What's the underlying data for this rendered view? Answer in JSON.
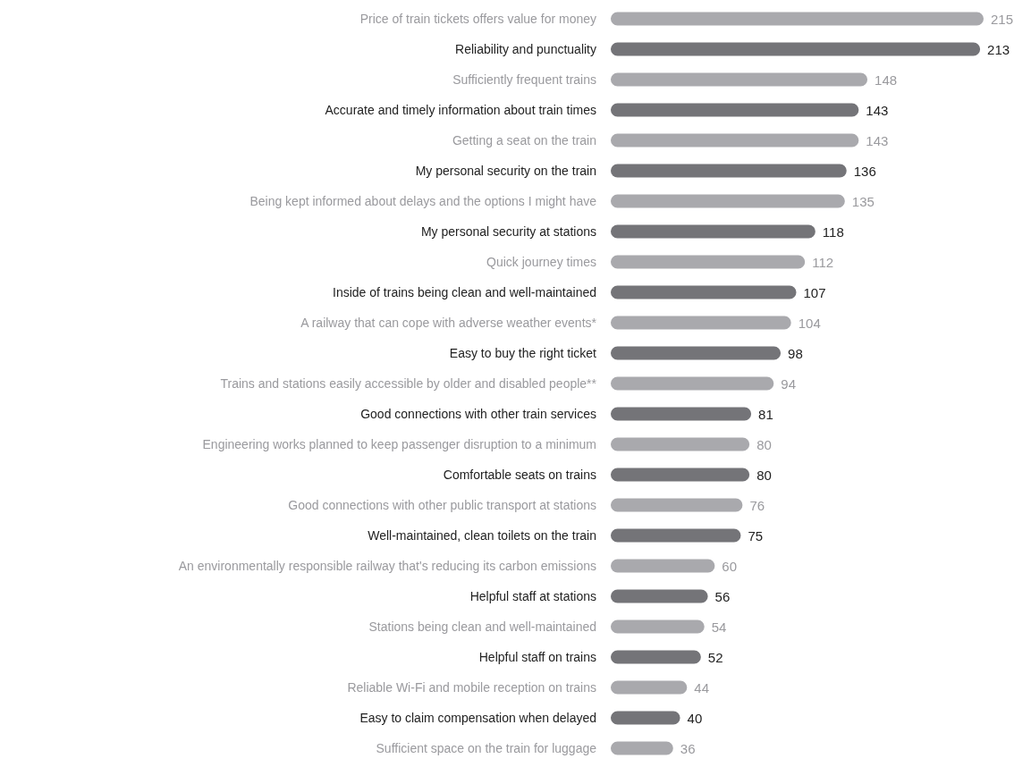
{
  "chart_data": {
    "type": "bar",
    "orientation": "horizontal",
    "categories": [
      "Price of train tickets offers value for money",
      "Reliability and punctuality",
      "Sufficiently frequent trains",
      "Accurate and timely information about train times",
      "Getting a seat on the train",
      "My personal security on the train",
      "Being kept informed about delays and the options I might have",
      "My personal security at stations",
      "Quick journey times",
      "Inside of trains being clean and well-maintained",
      "A railway that can cope with adverse weather events*",
      "Easy to buy the right ticket",
      "Trains and stations easily accessible by older and disabled people**",
      "Good connections with other train services",
      "Engineering works planned to keep passenger disruption to a minimum",
      "Comfortable seats on trains",
      "Good connections with other public transport at stations",
      "Well-maintained, clean toilets on the train",
      "An environmentally responsible railway that's reducing its carbon emissions",
      "Helpful staff at stations",
      "Stations being clean and well-maintained",
      "Helpful staff on trains",
      "Reliable Wi-Fi and mobile reception on trains",
      "Easy to claim compensation when delayed",
      "Sufficient space on the train for luggage"
    ],
    "values": [
      215,
      213,
      148,
      143,
      143,
      136,
      135,
      118,
      112,
      107,
      104,
      98,
      94,
      81,
      80,
      80,
      76,
      75,
      60,
      56,
      54,
      52,
      44,
      40,
      36
    ],
    "colors": [
      "#a9a9ad",
      "#747478",
      "#a9a9ad",
      "#747478",
      "#a9a9ad",
      "#747478",
      "#a9a9ad",
      "#747478",
      "#a9a9ad",
      "#747478",
      "#a9a9ad",
      "#747478",
      "#a9a9ad",
      "#747478",
      "#a9a9ad",
      "#747478",
      "#a9a9ad",
      "#747478",
      "#a9a9ad",
      "#747478",
      "#a9a9ad",
      "#747478",
      "#a9a9ad",
      "#747478",
      "#a9a9ad"
    ],
    "tick_labels": "y",
    "data_labels": true,
    "grid": false
  }
}
